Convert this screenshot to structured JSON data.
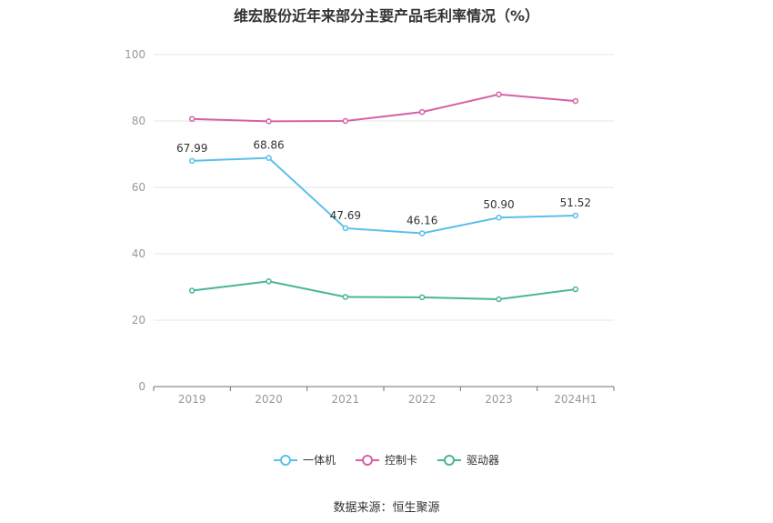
{
  "chart_data": {
    "type": "line",
    "title": "维宏股份近年来部分主要产品毛利率情况（%）",
    "categories": [
      "2019",
      "2020",
      "2021",
      "2022",
      "2023",
      "2024H1"
    ],
    "ylim": [
      0,
      100
    ],
    "yticks": [
      0,
      20,
      40,
      60,
      80,
      100
    ],
    "grid": true,
    "legend_position": "bottom-center",
    "series": [
      {
        "name": "一体机",
        "color": "#5bbfea",
        "values": [
          67.99,
          68.86,
          47.69,
          46.16,
          50.9,
          51.52
        ],
        "labels": [
          "67.99",
          "68.86",
          "47.69",
          "46.16",
          "50.90",
          "51.52"
        ]
      },
      {
        "name": "控制卡",
        "color": "#d660a8",
        "values": [
          80.6,
          79.9,
          80.0,
          82.7,
          88.0,
          86.0
        ]
      },
      {
        "name": "驱动器",
        "color": "#48b59a",
        "values": [
          28.9,
          31.7,
          27.0,
          26.9,
          26.3,
          29.3
        ]
      }
    ]
  },
  "source": "数据来源：恒生聚源"
}
